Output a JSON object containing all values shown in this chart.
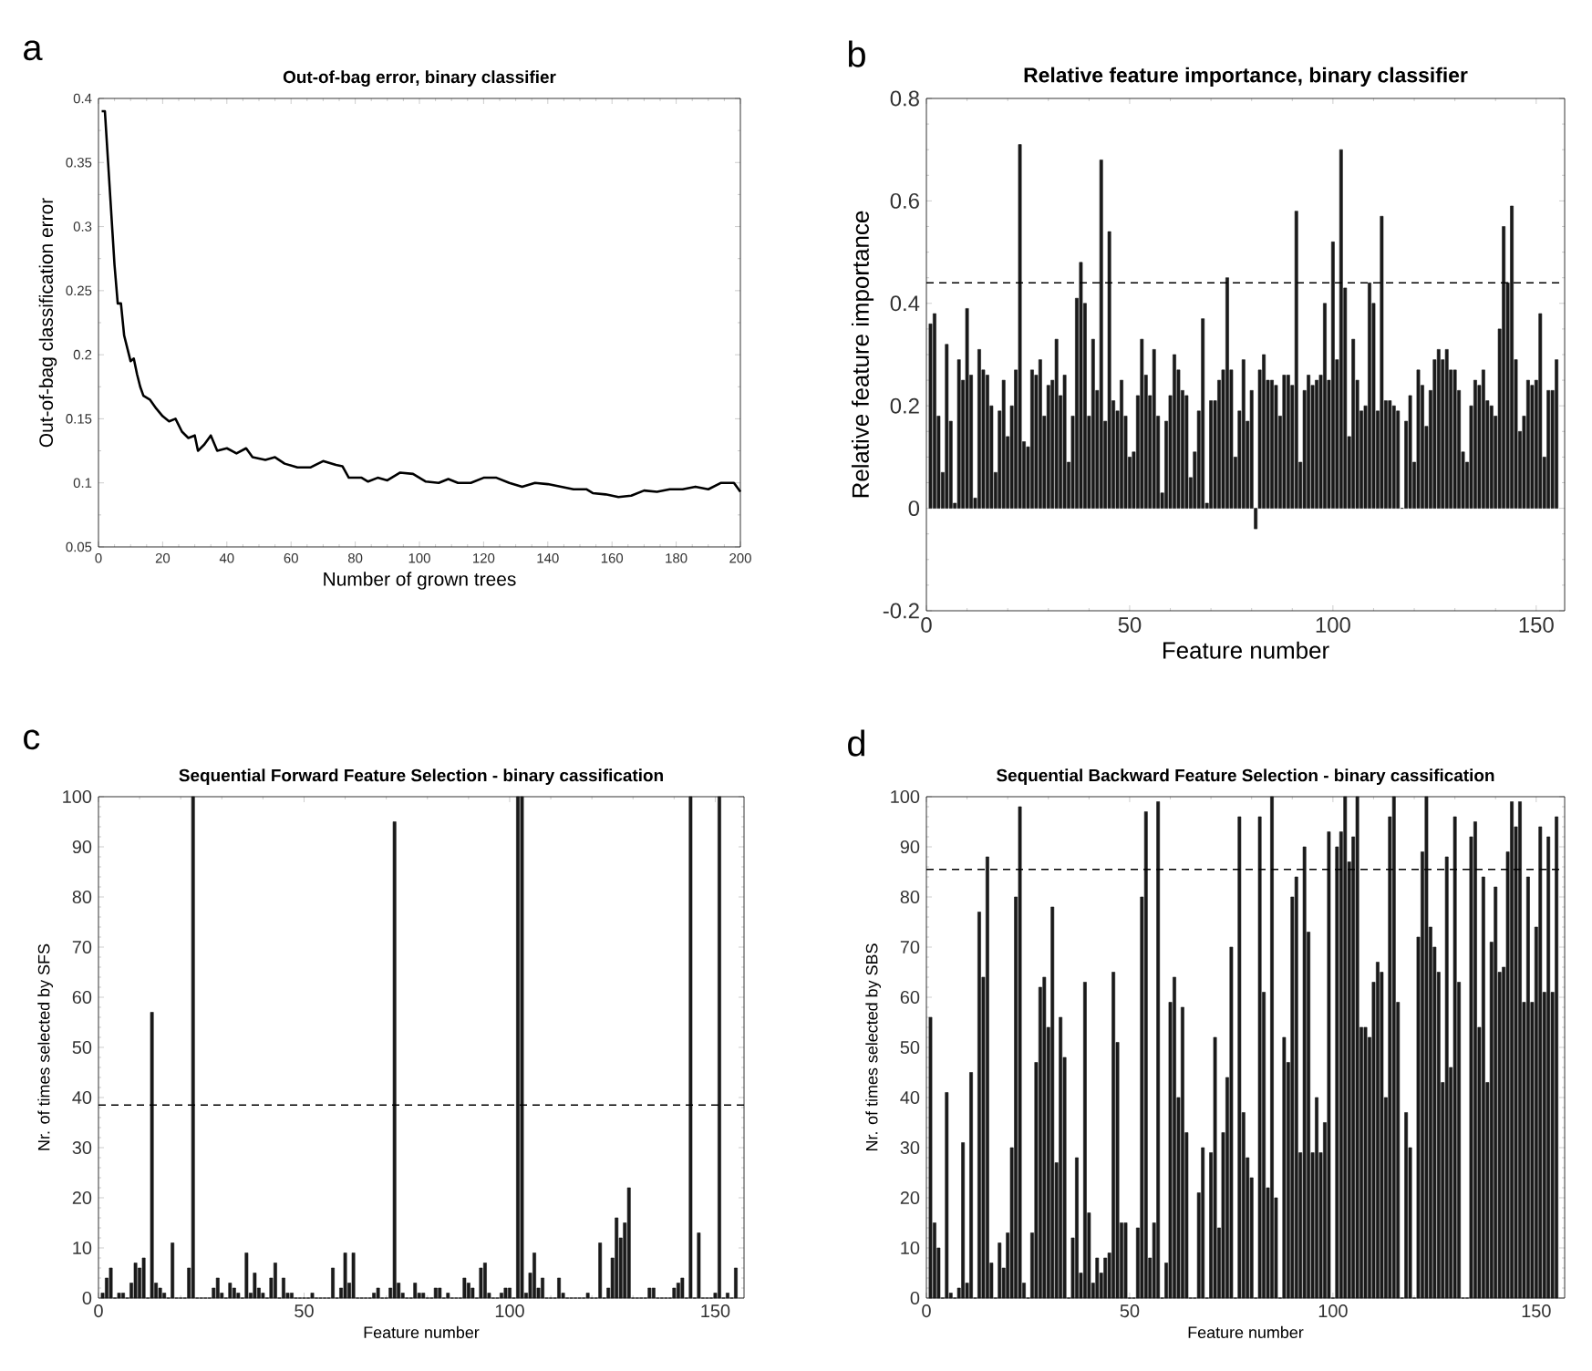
{
  "chart_data": [
    {
      "type": "line",
      "title": "Out-of-bag error, binary classifier",
      "xlabel": "Number of grown trees",
      "ylabel": "Out-of-bag classification error",
      "annotations": [
        "a"
      ],
      "color": "#000000",
      "line_style": "solid",
      "marker": "none",
      "x": [
        1,
        2,
        3,
        4,
        5,
        6,
        7,
        8,
        9,
        10,
        11,
        12,
        13,
        14,
        16,
        18,
        20,
        22,
        24,
        26,
        28,
        30,
        31,
        33,
        35,
        37,
        40,
        43,
        46,
        48,
        52,
        55,
        58,
        62,
        66,
        70,
        74,
        76,
        78,
        82,
        84,
        87,
        90,
        94,
        98,
        102,
        106,
        109,
        112,
        116,
        120,
        124,
        128,
        132,
        136,
        140,
        144,
        148,
        152,
        154,
        158,
        162,
        166,
        170,
        174,
        178,
        182,
        186,
        190,
        194,
        198,
        200
      ],
      "values": [
        0.39,
        0.39,
        0.35,
        0.31,
        0.27,
        0.24,
        0.24,
        0.215,
        0.205,
        0.195,
        0.197,
        0.185,
        0.175,
        0.168,
        0.165,
        0.158,
        0.152,
        0.148,
        0.15,
        0.14,
        0.135,
        0.137,
        0.125,
        0.13,
        0.137,
        0.125,
        0.127,
        0.123,
        0.127,
        0.12,
        0.118,
        0.12,
        0.115,
        0.112,
        0.112,
        0.117,
        0.114,
        0.113,
        0.104,
        0.104,
        0.101,
        0.104,
        0.102,
        0.108,
        0.107,
        0.101,
        0.1,
        0.103,
        0.1,
        0.1,
        0.104,
        0.104,
        0.1,
        0.097,
        0.1,
        0.099,
        0.097,
        0.095,
        0.095,
        0.092,
        0.091,
        0.089,
        0.09,
        0.094,
        0.093,
        0.095,
        0.095,
        0.097,
        0.095,
        0.1,
        0.1,
        0.093
      ],
      "xlim": [
        0,
        200
      ],
      "ylim": [
        0.05,
        0.4
      ],
      "xticks": [
        0,
        20,
        40,
        60,
        80,
        100,
        120,
        140,
        160,
        180,
        200
      ],
      "yticks": [
        0.05,
        0.1,
        0.15,
        0.2,
        0.25,
        0.3,
        0.35,
        0.4
      ]
    },
    {
      "type": "bar",
      "title": "Relative feature importance, binary classifier",
      "xlabel": "Feature number",
      "ylabel": "Relative feature importance",
      "annotations": [
        "b"
      ],
      "color": "#1a1a1a",
      "x": [
        1,
        2,
        3,
        4,
        5,
        6,
        7,
        8,
        9,
        10,
        11,
        12,
        13,
        14,
        15,
        16,
        17,
        18,
        19,
        20,
        21,
        22,
        23,
        24,
        25,
        26,
        27,
        28,
        29,
        30,
        31,
        32,
        33,
        34,
        35,
        36,
        37,
        38,
        39,
        40,
        41,
        42,
        43,
        44,
        45,
        46,
        47,
        48,
        49,
        50,
        51,
        52,
        53,
        54,
        55,
        56,
        57,
        58,
        59,
        60,
        61,
        62,
        63,
        64,
        65,
        66,
        67,
        68,
        69,
        70,
        71,
        72,
        73,
        74,
        75,
        76,
        77,
        78,
        79,
        80,
        81,
        82,
        83,
        84,
        85,
        86,
        87,
        88,
        89,
        90,
        91,
        92,
        93,
        94,
        95,
        96,
        97,
        98,
        99,
        100,
        101,
        102,
        103,
        104,
        105,
        106,
        107,
        108,
        109,
        110,
        111,
        112,
        113,
        114,
        115,
        116,
        117,
        118,
        119,
        120,
        121,
        122,
        123,
        124,
        125,
        126,
        127,
        128,
        129,
        130,
        131,
        132,
        133,
        134,
        135,
        136,
        137,
        138,
        139,
        140,
        141,
        142,
        143,
        144,
        145,
        146,
        147,
        148,
        149,
        150,
        151,
        152,
        153,
        154,
        155
      ],
      "values": [
        0.36,
        0.38,
        0.18,
        0.07,
        0.32,
        0.17,
        0.01,
        0.29,
        0.25,
        0.39,
        0.26,
        0.02,
        0.31,
        0.27,
        0.26,
        0.2,
        0.07,
        0.19,
        0.25,
        0.14,
        0.2,
        0.27,
        0.71,
        0.13,
        0.12,
        0.27,
        0.26,
        0.29,
        0.18,
        0.24,
        0.25,
        0.33,
        0.22,
        0.26,
        0.09,
        0.18,
        0.41,
        0.48,
        0.4,
        0.18,
        0.33,
        0.23,
        0.68,
        0.17,
        0.54,
        0.21,
        0.19,
        0.25,
        0.18,
        0.1,
        0.11,
        0.22,
        0.33,
        0.26,
        0.22,
        0.31,
        0.18,
        0.03,
        0.17,
        0.22,
        0.3,
        0.27,
        0.23,
        0.22,
        0.06,
        0.11,
        0.19,
        0.37,
        0.01,
        0.21,
        0.21,
        0.25,
        0.27,
        0.45,
        0.27,
        0.1,
        0.19,
        0.29,
        0.17,
        0.23,
        -0.04,
        0.27,
        0.3,
        0.25,
        0.25,
        0.24,
        0.18,
        0.26,
        0.26,
        0.24,
        0.58,
        0.09,
        0.23,
        0.26,
        0.24,
        0.25,
        0.26,
        0.4,
        0.25,
        0.52,
        0.29,
        0.7,
        0.43,
        0.14,
        0.33,
        0.25,
        0.19,
        0.2,
        0.44,
        0.4,
        0.19,
        0.57,
        0.21,
        0.21,
        0.2,
        0.19,
        0.0,
        0.17,
        0.22,
        0.09,
        0.27,
        0.24,
        0.16,
        0.23,
        0.29,
        0.31,
        0.29,
        0.31,
        0.27,
        0.27,
        0.23,
        0.11,
        0.09,
        0.2,
        0.25,
        0.24,
        0.27,
        0.21,
        0.2,
        0.18,
        0.35,
        0.55,
        0.44,
        0.59,
        0.29,
        0.15,
        0.18,
        0.25,
        0.24,
        0.25,
        0.38,
        0.1,
        0.23,
        0.23,
        0.29
      ],
      "xlim": [
        0,
        157
      ],
      "ylim": [
        -0.2,
        0.8
      ],
      "xticks": [
        0,
        50,
        100,
        150
      ],
      "yticks": [
        -0.2,
        0,
        0.2,
        0.4,
        0.6,
        0.8
      ],
      "ref_lines": [
        {
          "axis": "y",
          "value": 0.44,
          "line_style": "dashed"
        }
      ]
    },
    {
      "type": "bar",
      "title": "Sequential Forward Feature Selection - binary cassification",
      "xlabel": "Feature number",
      "ylabel": "Nr. of times selected by SFS",
      "annotations": [
        "c"
      ],
      "color": "#1a1a1a",
      "x": [
        1,
        2,
        3,
        4,
        5,
        6,
        7,
        8,
        9,
        10,
        11,
        12,
        13,
        14,
        15,
        16,
        17,
        18,
        19,
        20,
        21,
        22,
        23,
        24,
        25,
        26,
        27,
        28,
        29,
        30,
        31,
        32,
        33,
        34,
        35,
        36,
        37,
        38,
        39,
        40,
        41,
        42,
        43,
        44,
        45,
        46,
        47,
        48,
        49,
        50,
        51,
        52,
        53,
        54,
        55,
        56,
        57,
        58,
        59,
        60,
        61,
        62,
        63,
        64,
        65,
        66,
        67,
        68,
        69,
        70,
        71,
        72,
        73,
        74,
        75,
        76,
        77,
        78,
        79,
        80,
        81,
        82,
        83,
        84,
        85,
        86,
        87,
        88,
        89,
        90,
        91,
        92,
        93,
        94,
        95,
        96,
        97,
        98,
        99,
        100,
        101,
        102,
        103,
        104,
        105,
        106,
        107,
        108,
        109,
        110,
        111,
        112,
        113,
        114,
        115,
        116,
        117,
        118,
        119,
        120,
        121,
        122,
        123,
        124,
        125,
        126,
        127,
        128,
        129,
        130,
        131,
        132,
        133,
        134,
        135,
        136,
        137,
        138,
        139,
        140,
        141,
        142,
        143,
        144,
        145,
        146,
        147,
        148,
        149,
        150,
        151,
        152,
        153,
        154,
        155
      ],
      "values": [
        1,
        4,
        6,
        0,
        1,
        1,
        0,
        3,
        7,
        6,
        8,
        0,
        57,
        3,
        2,
        1,
        0,
        11,
        0,
        0,
        0,
        6,
        100,
        0,
        0,
        0,
        0,
        2,
        4,
        1,
        0,
        3,
        2,
        1,
        0,
        9,
        1,
        5,
        2,
        1,
        0,
        4,
        7,
        0,
        4,
        1,
        1,
        0,
        0,
        0,
        0,
        1,
        0,
        0,
        0,
        0,
        6,
        0,
        2,
        9,
        3,
        9,
        0,
        0,
        0,
        0,
        1,
        2,
        0,
        0,
        2,
        95,
        3,
        1,
        0,
        0,
        3,
        1,
        1,
        0,
        0,
        2,
        2,
        0,
        1,
        0,
        0,
        0,
        4,
        3,
        2,
        0,
        6,
        7,
        1,
        0,
        0,
        1,
        2,
        2,
        0,
        100,
        100,
        1,
        5,
        9,
        2,
        4,
        0,
        0,
        0,
        4,
        1,
        0,
        0,
        0,
        0,
        0,
        1,
        0,
        0,
        11,
        0,
        2,
        8,
        16,
        12,
        15,
        22,
        0,
        0,
        0,
        0,
        2,
        2,
        0,
        0,
        0,
        0,
        2,
        3,
        4,
        0,
        100,
        0,
        13,
        0,
        0,
        0,
        1,
        100,
        0,
        1,
        0,
        6
      ],
      "xlim": [
        0,
        157
      ],
      "ylim": [
        0,
        100
      ],
      "xticks": [
        0,
        50,
        100,
        150
      ],
      "yticks": [
        0,
        10,
        20,
        30,
        40,
        50,
        60,
        70,
        80,
        90,
        100
      ],
      "ref_lines": [
        {
          "axis": "y",
          "value": 38.5,
          "line_style": "dashed"
        }
      ]
    },
    {
      "type": "bar",
      "title": "Sequential Backward Feature Selection - binary cassification",
      "xlabel": "Feature number",
      "ylabel": "Nr. of times selected by SBS",
      "annotations": [
        "d"
      ],
      "color": "#1a1a1a",
      "x": [
        1,
        2,
        3,
        4,
        5,
        6,
        7,
        8,
        9,
        10,
        11,
        12,
        13,
        14,
        15,
        16,
        17,
        18,
        19,
        20,
        21,
        22,
        23,
        24,
        25,
        26,
        27,
        28,
        29,
        30,
        31,
        32,
        33,
        34,
        35,
        36,
        37,
        38,
        39,
        40,
        41,
        42,
        43,
        44,
        45,
        46,
        47,
        48,
        49,
        50,
        51,
        52,
        53,
        54,
        55,
        56,
        57,
        58,
        59,
        60,
        61,
        62,
        63,
        64,
        65,
        66,
        67,
        68,
        69,
        70,
        71,
        72,
        73,
        74,
        75,
        76,
        77,
        78,
        79,
        80,
        81,
        82,
        83,
        84,
        85,
        86,
        87,
        88,
        89,
        90,
        91,
        92,
        93,
        94,
        95,
        96,
        97,
        98,
        99,
        100,
        101,
        102,
        103,
        104,
        105,
        106,
        107,
        108,
        109,
        110,
        111,
        112,
        113,
        114,
        115,
        116,
        117,
        118,
        119,
        120,
        121,
        122,
        123,
        124,
        125,
        126,
        127,
        128,
        129,
        130,
        131,
        132,
        133,
        134,
        135,
        136,
        137,
        138,
        139,
        140,
        141,
        142,
        143,
        144,
        145,
        146,
        147,
        148,
        149,
        150,
        151,
        152,
        153,
        154,
        155
      ],
      "values": [
        56,
        15,
        10,
        0,
        41,
        1,
        0,
        2,
        31,
        3,
        45,
        0,
        77,
        64,
        88,
        7,
        0,
        11,
        6,
        13,
        30,
        80,
        98,
        3,
        0,
        13,
        47,
        62,
        64,
        54,
        78,
        27,
        56,
        48,
        0,
        12,
        28,
        5,
        63,
        17,
        3,
        8,
        5,
        8,
        9,
        65,
        51,
        15,
        15,
        0,
        0,
        14,
        80,
        97,
        8,
        15,
        99,
        0,
        7,
        59,
        64,
        40,
        58,
        33,
        0,
        0,
        21,
        30,
        0,
        29,
        52,
        14,
        33,
        44,
        70,
        0,
        96,
        37,
        28,
        24,
        0,
        96,
        61,
        22,
        100,
        20,
        0,
        52,
        47,
        80,
        84,
        29,
        90,
        73,
        29,
        40,
        29,
        35,
        93,
        0,
        90,
        93,
        100,
        87,
        92,
        100,
        54,
        54,
        52,
        63,
        67,
        65,
        40,
        96,
        100,
        59,
        0,
        37,
        30,
        0,
        72,
        89,
        100,
        74,
        70,
        65,
        43,
        88,
        46,
        96,
        63,
        0,
        0,
        92,
        95,
        54,
        84,
        43,
        71,
        82,
        65,
        66,
        89,
        99,
        94,
        99,
        59,
        84,
        59,
        74,
        94,
        61,
        92,
        61,
        96
      ],
      "xlim": [
        0,
        157
      ],
      "ylim": [
        0,
        100
      ],
      "xticks": [
        0,
        50,
        100,
        150
      ],
      "yticks": [
        0,
        10,
        20,
        30,
        40,
        50,
        60,
        70,
        80,
        90,
        100
      ],
      "ref_lines": [
        {
          "axis": "y",
          "value": 85.5,
          "line_style": "dashed"
        }
      ]
    }
  ]
}
